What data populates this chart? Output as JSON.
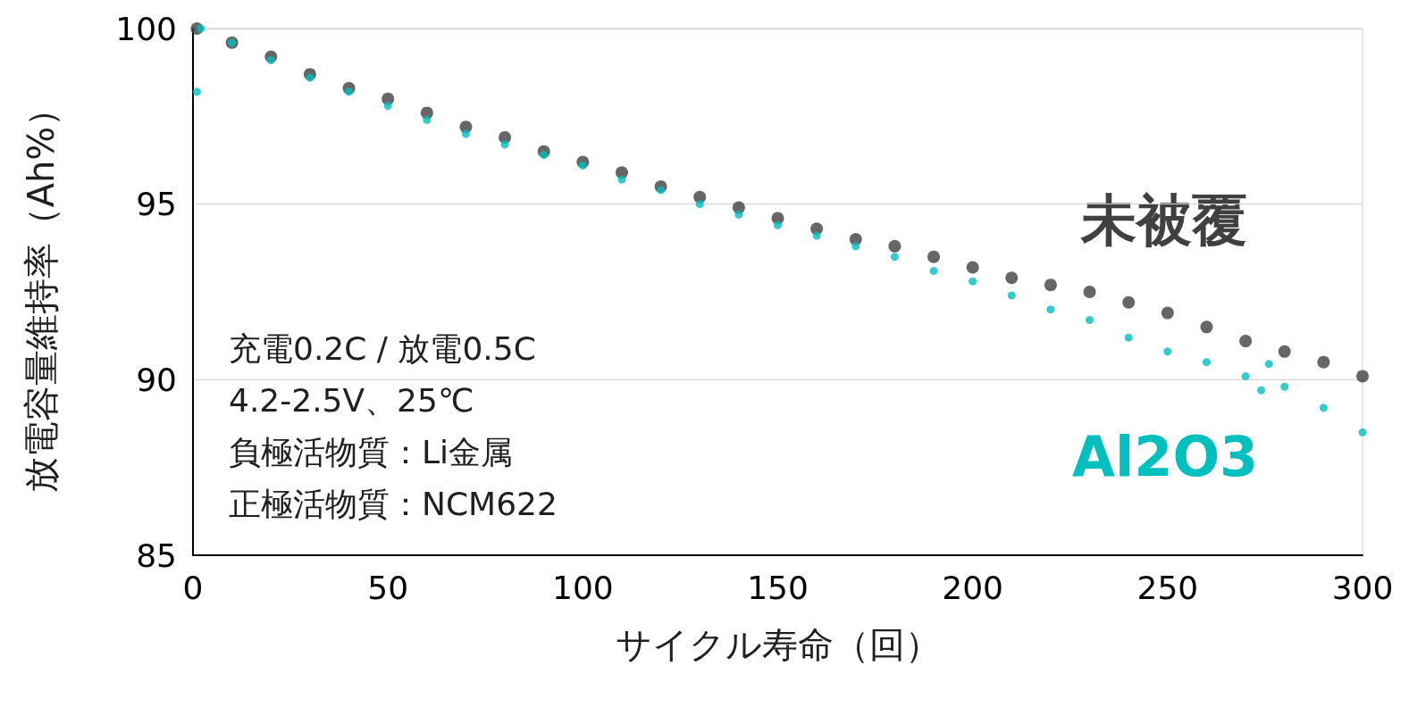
{
  "chart_data": {
    "type": "scatter",
    "xlabel": "サイクル寿命（回）",
    "ylabel": "放電容量維持率（Ah%）",
    "xlim": [
      0,
      300
    ],
    "xticks": [
      0,
      50,
      100,
      150,
      200,
      250,
      300
    ],
    "ylim": [
      85,
      100
    ],
    "yticks": [
      85,
      90,
      95,
      100
    ],
    "grid": "y",
    "legend": false,
    "marker": "circle",
    "annotations": [
      "充電0.2C / 放電0.5C",
      "4.2-2.5V、25℃",
      "負極活物質：Li金属",
      "正極活物質：NCM622"
    ],
    "series": [
      {
        "name": "未被覆",
        "color": "#404040",
        "x": [
          1,
          10,
          20,
          30,
          40,
          50,
          60,
          70,
          80,
          90,
          100,
          110,
          120,
          130,
          140,
          150,
          160,
          170,
          180,
          190,
          200,
          210,
          220,
          230,
          240,
          250,
          260,
          270,
          280,
          290,
          300
        ],
        "values": [
          100,
          99.6,
          99.2,
          98.7,
          98.3,
          98.0,
          97.6,
          97.2,
          96.9,
          96.5,
          96.2,
          95.9,
          95.5,
          95.2,
          94.9,
          94.6,
          94.3,
          94.0,
          93.8,
          93.5,
          93.2,
          92.9,
          92.7,
          92.5,
          92.2,
          91.9,
          91.5,
          91.1,
          90.8,
          90.5,
          90.1
        ]
      },
      {
        "name": "Al2O3",
        "color": "#00bfbf",
        "x": [
          1,
          2,
          10,
          20,
          30,
          40,
          50,
          60,
          70,
          80,
          90,
          100,
          110,
          120,
          130,
          140,
          150,
          160,
          170,
          180,
          190,
          200,
          210,
          220,
          230,
          240,
          250,
          260,
          270,
          274,
          276,
          280,
          290,
          300
        ],
        "values": [
          98.2,
          100,
          99.6,
          99.1,
          98.6,
          98.2,
          97.8,
          97.4,
          97.0,
          96.7,
          96.4,
          96.1,
          95.7,
          95.4,
          95.0,
          94.7,
          94.4,
          94.1,
          93.8,
          93.5,
          93.1,
          92.8,
          92.4,
          92.0,
          91.7,
          91.2,
          90.8,
          90.5,
          90.1,
          89.7,
          90.45,
          89.8,
          89.2,
          88.5
        ]
      }
    ]
  }
}
